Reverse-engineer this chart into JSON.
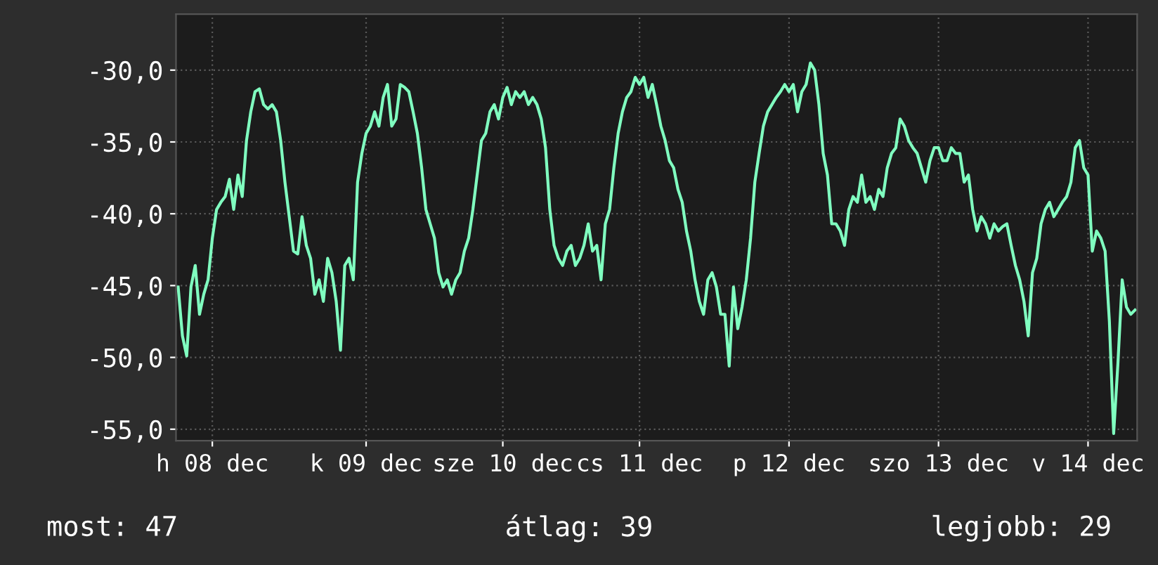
{
  "chart_data": {
    "type": "line",
    "categories": [
      null,
      null,
      null,
      null,
      null,
      null,
      null,
      null,
      "h 08 dec",
      null,
      null,
      null,
      null,
      null,
      null,
      null,
      null,
      null,
      null,
      null,
      null,
      null,
      null,
      null,
      null,
      null,
      null,
      null,
      null,
      null,
      null,
      null,
      null,
      null,
      null,
      null,
      null,
      null,
      null,
      null,
      null,
      null,
      null,
      null,
      "k 09 dec",
      null,
      null,
      null,
      null,
      null,
      null,
      null,
      null,
      null,
      null,
      null,
      null,
      null,
      null,
      null,
      null,
      null,
      null,
      null,
      null,
      null,
      null,
      null,
      null,
      null,
      null,
      null,
      null,
      null,
      null,
      null,
      "sze 10 dec",
      null,
      null,
      null,
      null,
      null,
      null,
      null,
      null,
      null,
      null,
      null,
      null,
      null,
      null,
      null,
      null,
      null,
      null,
      null,
      null,
      null,
      null,
      null,
      null,
      null,
      null,
      null,
      null,
      null,
      null,
      null,
      "cs 11 dec",
      null,
      null,
      null,
      null,
      null,
      null,
      null,
      null,
      null,
      null,
      null,
      null,
      null,
      null,
      null,
      null,
      null,
      null,
      null,
      null,
      null,
      null,
      null,
      null,
      null,
      null,
      null,
      null,
      null,
      null,
      null,
      null,
      null,
      null,
      "p 12 dec",
      null,
      null,
      null,
      null,
      null,
      null,
      null,
      null,
      null,
      null,
      null,
      null,
      null,
      null,
      null,
      null,
      null,
      null,
      null,
      null,
      null,
      null,
      null,
      null,
      null,
      null,
      null,
      null,
      null,
      null,
      null,
      null,
      null,
      null,
      "szo 13 dec",
      null,
      null,
      null,
      null,
      null,
      null,
      null,
      null,
      null,
      null,
      null,
      null,
      null,
      null,
      null,
      null,
      null,
      null,
      null,
      null,
      null,
      null,
      null,
      null,
      null,
      null,
      null,
      null,
      null,
      null,
      null,
      null,
      null,
      null,
      "v 14 dec",
      null,
      null,
      null,
      null,
      null,
      null,
      null,
      null,
      null,
      null,
      null
    ],
    "series": [
      {
        "color": "#80ffc0",
        "values": [
          -45.1,
          -48.5,
          -49.9,
          -45.1,
          -43.6,
          -47.0,
          -45.6,
          -44.6,
          -41.7,
          -39.7,
          -39.2,
          -38.8,
          -37.6,
          -39.7,
          -37.3,
          -38.8,
          -34.9,
          -32.9,
          -31.5,
          -31.3,
          -32.4,
          -32.7,
          -32.4,
          -32.9,
          -34.9,
          -37.8,
          -40.2,
          -42.6,
          -42.8,
          -40.2,
          -42.2,
          -43.1,
          -45.6,
          -44.6,
          -46.1,
          -43.1,
          -44.1,
          -46.1,
          -49.5,
          -43.6,
          -43.1,
          -44.6,
          -37.8,
          -35.8,
          -34.4,
          -33.9,
          -32.9,
          -33.9,
          -31.9,
          -31.0,
          -33.9,
          -33.4,
          -31.0,
          -31.2,
          -31.5,
          -32.9,
          -34.4,
          -36.8,
          -39.7,
          -40.7,
          -41.7,
          -44.1,
          -45.1,
          -44.6,
          -45.6,
          -44.6,
          -44.1,
          -42.6,
          -41.7,
          -39.7,
          -37.3,
          -34.9,
          -34.4,
          -32.9,
          -32.4,
          -33.4,
          -31.9,
          -31.2,
          -32.4,
          -31.5,
          -31.9,
          -31.5,
          -32.4,
          -31.9,
          -32.4,
          -33.4,
          -35.4,
          -39.7,
          -42.2,
          -43.1,
          -43.6,
          -42.6,
          -42.2,
          -43.6,
          -43.1,
          -42.2,
          -40.7,
          -42.6,
          -42.2,
          -44.6,
          -40.7,
          -39.7,
          -36.8,
          -34.4,
          -32.9,
          -31.9,
          -31.5,
          -30.5,
          -31.0,
          -30.5,
          -31.9,
          -31.0,
          -32.4,
          -33.9,
          -34.9,
          -36.3,
          -36.8,
          -38.3,
          -39.2,
          -41.2,
          -42.6,
          -44.6,
          -46.1,
          -47.0,
          -44.6,
          -44.1,
          -45.1,
          -47.0,
          -47.0,
          -50.6,
          -45.1,
          -48.0,
          -46.5,
          -44.6,
          -41.7,
          -37.8,
          -35.8,
          -33.9,
          -32.9,
          -32.4,
          -31.9,
          -31.5,
          -31.0,
          -31.5,
          -31.0,
          -32.9,
          -31.5,
          -31.0,
          -29.5,
          -30.0,
          -32.4,
          -35.8,
          -37.3,
          -40.7,
          -40.7,
          -41.2,
          -42.2,
          -39.7,
          -38.8,
          -39.2,
          -37.3,
          -39.2,
          -38.8,
          -39.7,
          -38.3,
          -38.8,
          -36.8,
          -35.8,
          -35.4,
          -33.4,
          -33.9,
          -34.9,
          -35.4,
          -35.8,
          -36.8,
          -37.8,
          -36.3,
          -35.4,
          -35.4,
          -36.3,
          -36.3,
          -35.4,
          -35.8,
          -35.8,
          -37.8,
          -37.3,
          -39.7,
          -41.2,
          -40.2,
          -40.7,
          -41.7,
          -40.7,
          -41.2,
          -40.9,
          -40.7,
          -42.2,
          -43.6,
          -44.6,
          -46.1,
          -48.5,
          -44.1,
          -43.1,
          -40.7,
          -39.7,
          -39.2,
          -40.2,
          -39.7,
          -39.2,
          -38.8,
          -37.8,
          -35.4,
          -34.9,
          -36.8,
          -37.3,
          -42.6,
          -41.2,
          -41.7,
          -42.6,
          -47.5,
          -55.3,
          -50.4,
          -44.6,
          -46.5,
          -47.0,
          -46.7
        ]
      }
    ],
    "ylim": [
      -55.8,
      -26.1
    ],
    "yticks": [
      {
        "value": -55,
        "label": "-55,0"
      },
      {
        "value": -50,
        "label": "-50,0"
      },
      {
        "value": -45,
        "label": "-45,0"
      },
      {
        "value": -40,
        "label": "-40,0"
      },
      {
        "value": -35,
        "label": "-35,0"
      },
      {
        "value": -30,
        "label": "-30,0"
      }
    ],
    "grid": true,
    "annotations": [
      "most: 47",
      "átlag: 39",
      "legjobb: 29"
    ]
  }
}
